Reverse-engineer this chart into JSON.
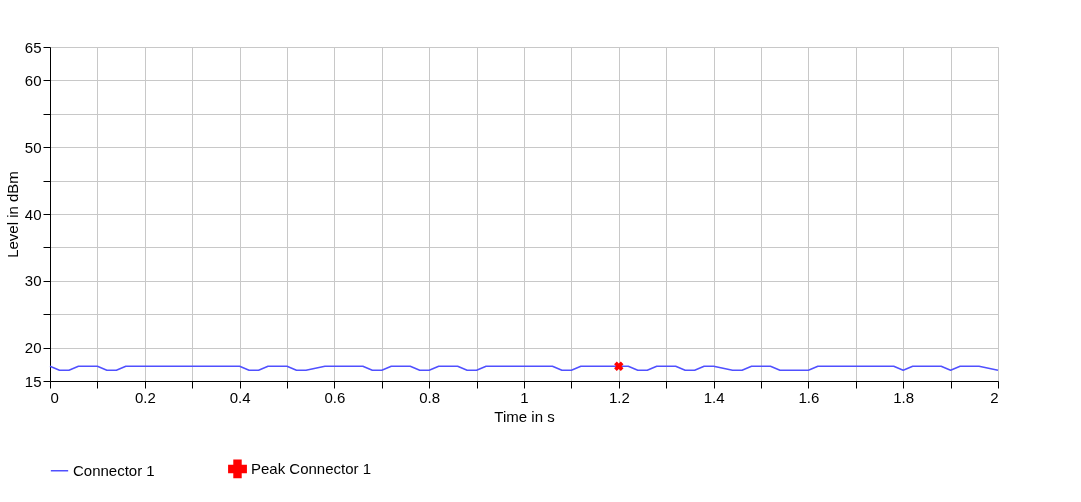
{
  "chart_data": {
    "type": "line",
    "xlabel": "Time in s",
    "ylabel": "Level in dBm",
    "xlim": [
      0,
      2
    ],
    "ylim": [
      15,
      65
    ],
    "xticks": [
      0,
      {
        "value": 0.1,
        "label": null
      },
      0.2,
      {
        "value": 0.3,
        "label": null
      },
      0.4,
      {
        "value": 0.5,
        "label": null
      },
      0.6,
      {
        "value": 0.7,
        "label": null
      },
      0.8,
      {
        "value": 0.9,
        "label": null
      },
      1,
      {
        "value": 1.1,
        "label": null
      },
      1.2,
      {
        "value": 1.3,
        "label": null
      },
      1.4,
      {
        "value": 1.5,
        "label": null
      },
      1.6,
      {
        "value": 1.7,
        "label": null
      },
      1.8,
      {
        "value": 1.9,
        "label": null
      },
      2
    ],
    "yticks": [
      15,
      20,
      {
        "value": 25,
        "label": null
      },
      30,
      {
        "value": 35,
        "label": null
      },
      40,
      {
        "value": 45,
        "label": null
      },
      50,
      {
        "value": 55,
        "label": null
      },
      60,
      65
    ],
    "grid": true,
    "legend": "bottom left",
    "series": [
      {
        "name": "Connector 1",
        "color": "#5050ff",
        "line_style": "solid",
        "marker": "none",
        "x": [
          0,
          0.02,
          0.04,
          0.06,
          0.1,
          0.12,
          0.14,
          0.16,
          0.4,
          0.42,
          0.44,
          0.46,
          0.5,
          0.52,
          0.54,
          0.58,
          0.66,
          0.68,
          0.7,
          0.72,
          0.76,
          0.78,
          0.8,
          0.82,
          0.86,
          0.88,
          0.9,
          0.92,
          1.06,
          1.08,
          1.1,
          1.12,
          1.22,
          1.24,
          1.26,
          1.28,
          1.32,
          1.34,
          1.36,
          1.38,
          1.4,
          1.44,
          1.46,
          1.48,
          1.52,
          1.54,
          1.6,
          1.62,
          1.78,
          1.8,
          1.82,
          1.88,
          1.9,
          1.92,
          1.96,
          2
        ],
        "values": [
          17.2,
          16.6,
          16.6,
          17.2,
          17.2,
          16.6,
          16.6,
          17.2,
          17.2,
          16.6,
          16.6,
          17.2,
          17.2,
          16.6,
          16.6,
          17.2,
          17.2,
          16.6,
          16.6,
          17.2,
          17.2,
          16.6,
          16.6,
          17.2,
          17.2,
          16.6,
          16.6,
          17.2,
          17.2,
          16.6,
          16.6,
          17.2,
          17.2,
          16.6,
          16.6,
          17.2,
          17.2,
          16.6,
          16.6,
          17.2,
          17.2,
          16.6,
          16.6,
          17.2,
          17.2,
          16.6,
          16.6,
          17.2,
          17.2,
          16.6,
          17.2,
          17.2,
          16.6,
          17.2,
          17.2,
          16.6
        ]
      },
      {
        "name": "Peak Connector 1",
        "type": "scatter",
        "color": "#ff0000",
        "marker": "cross",
        "x": [
          1.2
        ],
        "values": [
          17.2
        ]
      }
    ]
  }
}
